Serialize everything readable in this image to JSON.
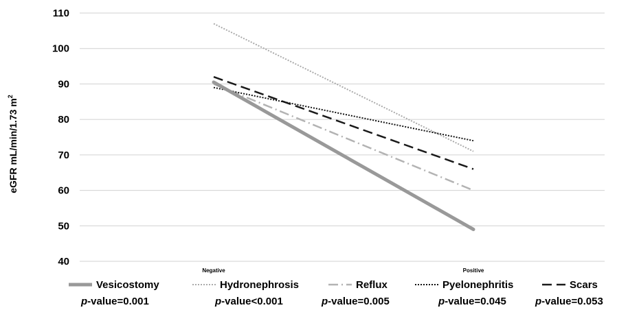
{
  "chart_data": {
    "type": "line",
    "ylabel": "eGFR mL/min/1.73 m",
    "ylabel_sup": "2",
    "categories": [
      "Negative",
      "Positive"
    ],
    "ylim": [
      40,
      110
    ],
    "yticks": [
      40,
      50,
      60,
      70,
      80,
      90,
      100,
      110
    ],
    "grid": true,
    "legend_position": "bottom",
    "series": [
      {
        "name": "Vesicostomy",
        "values": [
          90.5,
          49
        ],
        "color": "#999999",
        "style": "solid",
        "p_value": "=0.001"
      },
      {
        "name": "Hydronephrosis",
        "values": [
          107,
          71
        ],
        "color": "#aaaaaa",
        "style": "dotted",
        "p_value": "<0.001"
      },
      {
        "name": "Reflux",
        "values": [
          90,
          60
        ],
        "color": "#b3b3b3",
        "style": "dashdot",
        "p_value": "=0.005"
      },
      {
        "name": "Pyelonephritis",
        "values": [
          89,
          74
        ],
        "color": "#111111",
        "style": "dotted-dark",
        "p_value": "=0.045"
      },
      {
        "name": "Scars",
        "values": [
          92,
          66
        ],
        "color": "#1a1a1a",
        "style": "dashed",
        "p_value": "=0.053"
      }
    ]
  },
  "p_prefix": "p",
  "p_label": "-value"
}
